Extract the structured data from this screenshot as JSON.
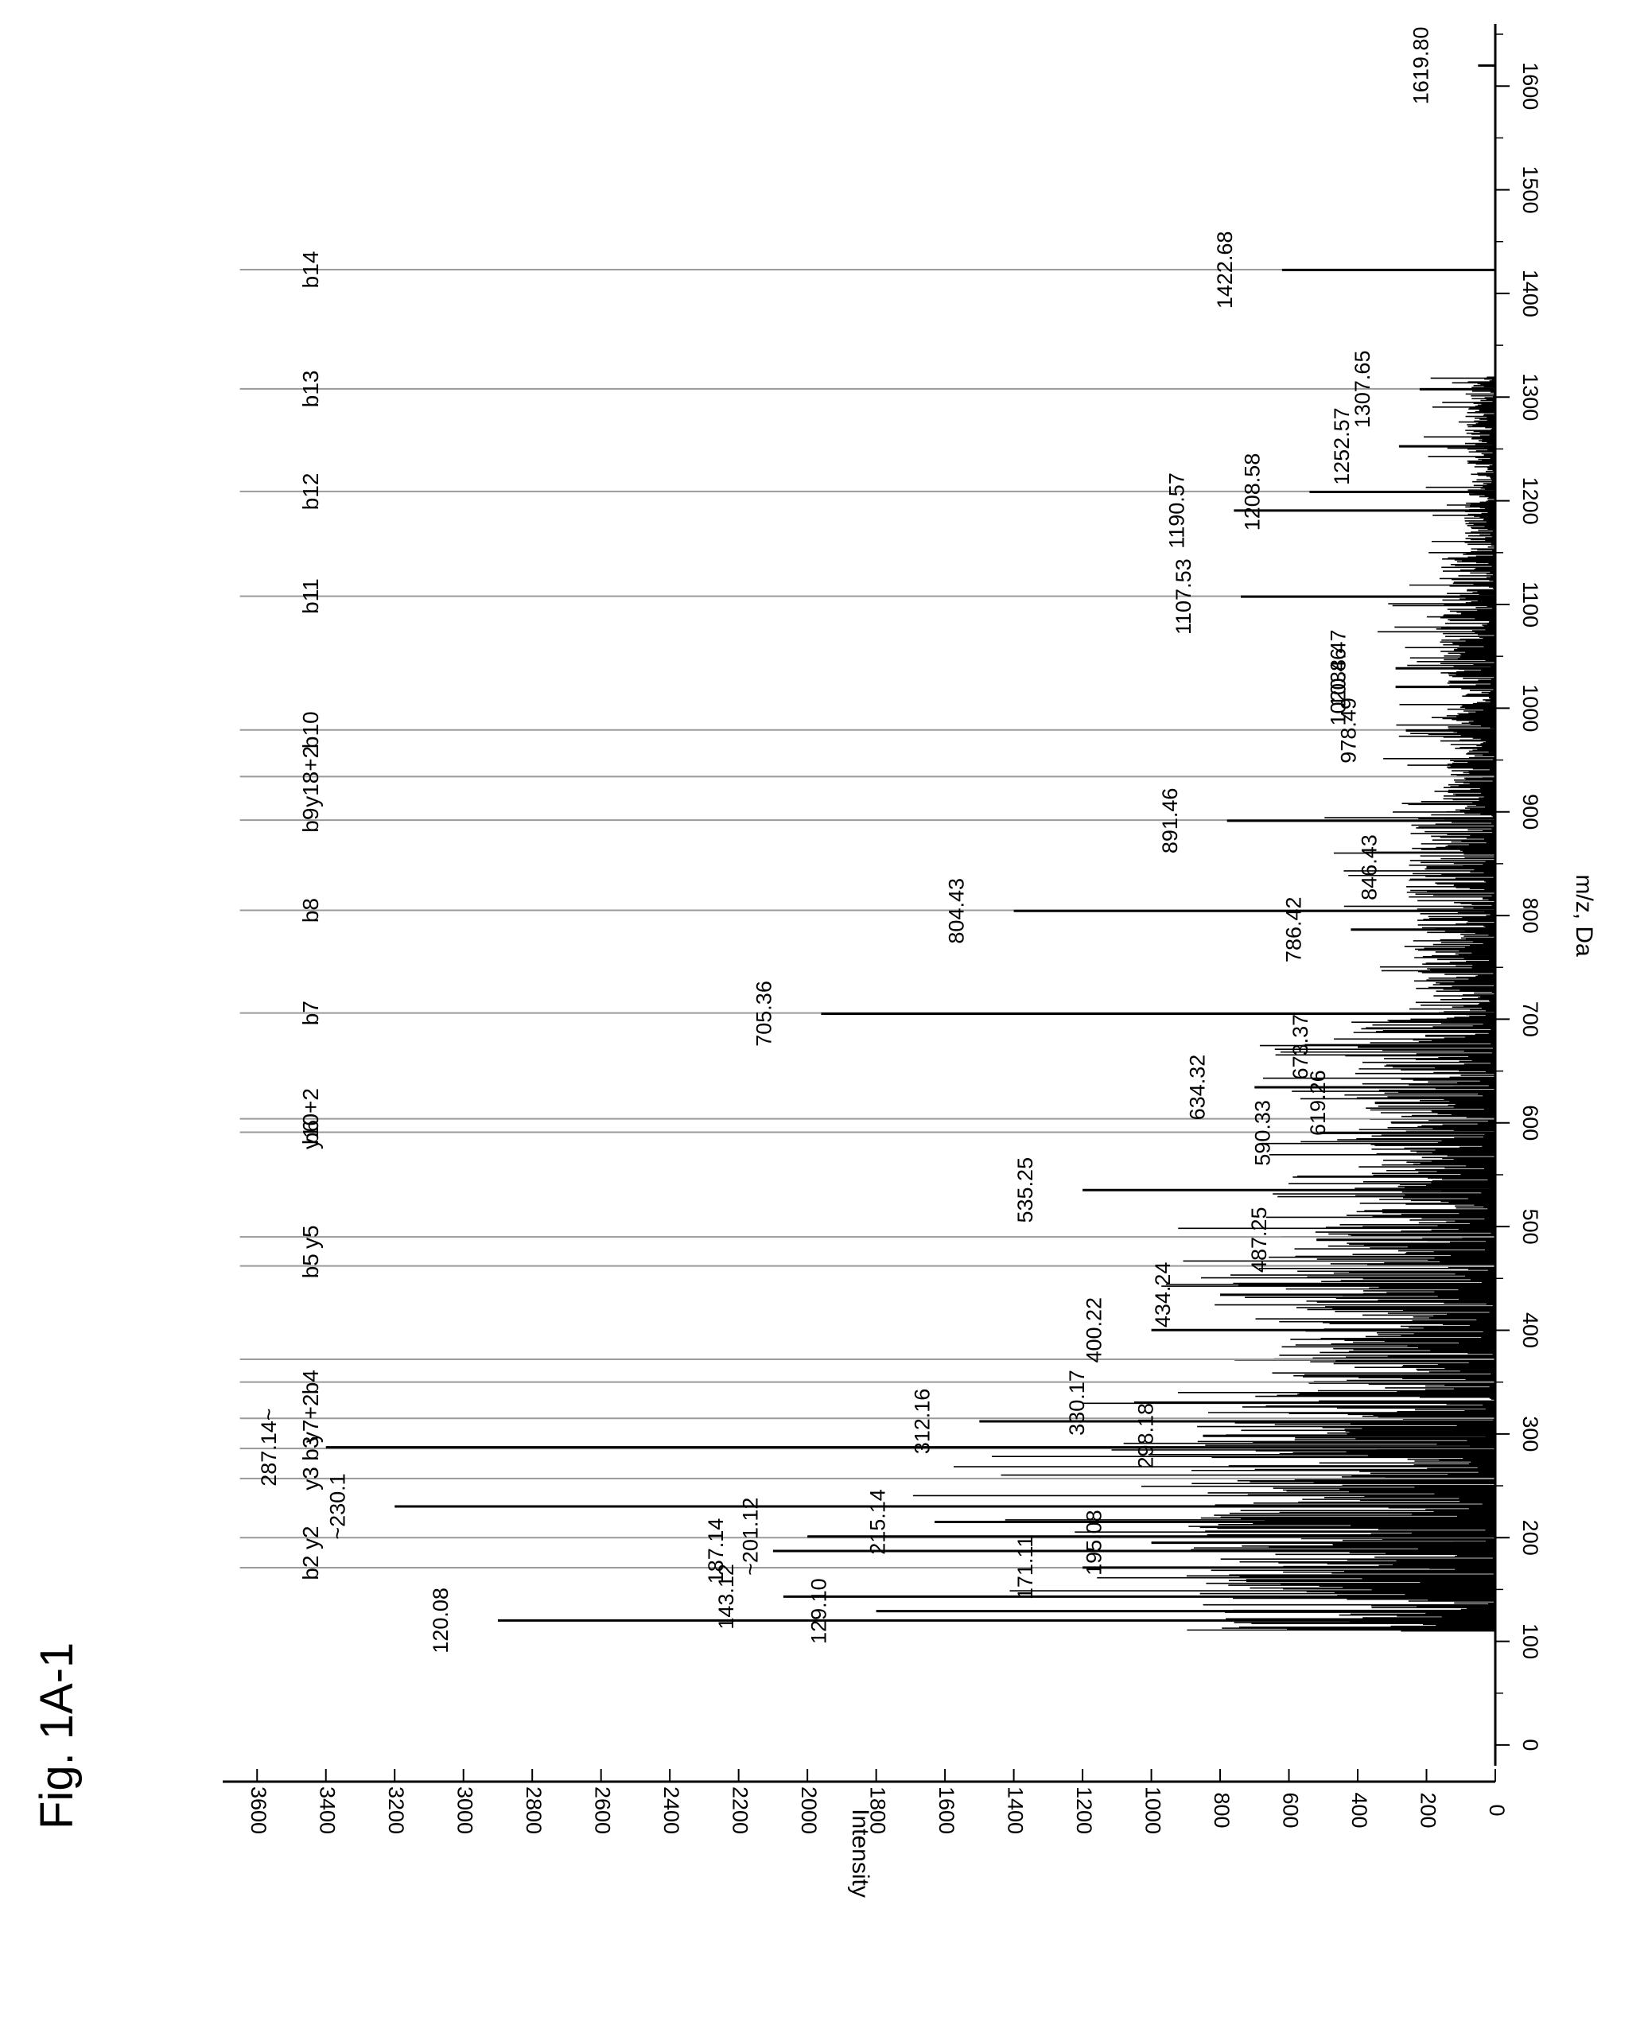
{
  "figure": {
    "label": "Fig. 1A-1"
  },
  "chart_data": {
    "type": "bar",
    "xlabel": "m/z, Da",
    "ylabel": "Intensity",
    "xlim": [
      -20,
      1660
    ],
    "ylim": [
      0,
      3700
    ],
    "x_ticks": [
      0,
      100,
      200,
      300,
      400,
      500,
      600,
      700,
      800,
      900,
      1000,
      1100,
      1200,
      1300,
      1400,
      1500,
      1600
    ],
    "y_ticks": [
      0,
      200,
      400,
      600,
      800,
      1000,
      1200,
      1400,
      1600,
      1800,
      2000,
      2200,
      2400,
      2600,
      2800,
      3000,
      3200,
      3400,
      3600
    ],
    "labeled_peaks": [
      {
        "mz": 120.08,
        "label": "120.08",
        "intensity": 2900
      },
      {
        "mz": 129.1,
        "label": "129.10",
        "intensity": 1800
      },
      {
        "mz": 143.12,
        "label": "143.12",
        "intensity": 2070
      },
      {
        "mz": 171.11,
        "label": "171.11",
        "intensity": 1200
      },
      {
        "mz": 187.14,
        "label": "187.14",
        "intensity": 2100
      },
      {
        "mz": 195.08,
        "label": "195.08",
        "intensity": 1000
      },
      {
        "mz": 201.12,
        "label": "~201.12",
        "intensity": 2000
      },
      {
        "mz": 215.14,
        "label": "215.14",
        "intensity": 1630
      },
      {
        "mz": 230.1,
        "label": "~230.1",
        "intensity": 3200
      },
      {
        "mz": 287.14,
        "label": "287.14~",
        "intensity": 3400
      },
      {
        "mz": 298.18,
        "label": "298.18",
        "intensity": 850
      },
      {
        "mz": 312.16,
        "label": "312.16",
        "intensity": 1500
      },
      {
        "mz": 330.17,
        "label": "330.17",
        "intensity": 1050
      },
      {
        "mz": 400.22,
        "label": "400.22",
        "intensity": 1000
      },
      {
        "mz": 434.24,
        "label": "434.24",
        "intensity": 800
      },
      {
        "mz": 487.25,
        "label": "487.25",
        "intensity": 520
      },
      {
        "mz": 535.25,
        "label": "535.25",
        "intensity": 1200
      },
      {
        "mz": 590.33,
        "label": "590.33",
        "intensity": 510
      },
      {
        "mz": 619.26,
        "label": "619.26",
        "intensity": 350
      },
      {
        "mz": 634.32,
        "label": "634.32",
        "intensity": 700
      },
      {
        "mz": 673.37,
        "label": "673.37",
        "intensity": 400
      },
      {
        "mz": 705.36,
        "label": "705.36",
        "intensity": 1960
      },
      {
        "mz": 786.42,
        "label": "786.42",
        "intensity": 420
      },
      {
        "mz": 804.43,
        "label": "804.43",
        "intensity": 1400
      },
      {
        "mz": 846.43,
        "label": "846.43",
        "intensity": 200
      },
      {
        "mz": 891.46,
        "label": "891.46",
        "intensity": 780
      },
      {
        "mz": 978.49,
        "label": "978.49",
        "intensity": 260
      },
      {
        "mz": 1020.46,
        "label": "1020.46",
        "intensity": 290
      },
      {
        "mz": 1038.47,
        "label": "1038.47",
        "intensity": 290
      },
      {
        "mz": 1107.53,
        "label": "1107.53",
        "intensity": 740
      },
      {
        "mz": 1190.57,
        "label": "1190.57",
        "intensity": 760
      },
      {
        "mz": 1208.58,
        "label": "1208.58",
        "intensity": 540
      },
      {
        "mz": 1252.57,
        "label": "1252.57",
        "intensity": 280
      },
      {
        "mz": 1307.65,
        "label": "1307.65",
        "intensity": 220
      },
      {
        "mz": 1422.68,
        "label": "1422.68",
        "intensity": 620
      },
      {
        "mz": 1619.8,
        "label": "1619.80",
        "intensity": 50
      }
    ],
    "ion_markers": [
      {
        "mz": 171,
        "label": "b2"
      },
      {
        "mz": 200,
        "label": "y2"
      },
      {
        "mz": 257,
        "label": "y3"
      },
      {
        "mz": 286,
        "label": "b3"
      },
      {
        "mz": 315,
        "label": "y7+2"
      },
      {
        "mz": 350,
        "label": "b4"
      },
      {
        "mz": 372,
        "label": ""
      },
      {
        "mz": 462,
        "label": "b5"
      },
      {
        "mz": 490,
        "label": "y5"
      },
      {
        "mz": 591,
        "label": "b6"
      },
      {
        "mz": 604,
        "label": "y10+2"
      },
      {
        "mz": 706,
        "label": "b7"
      },
      {
        "mz": 805,
        "label": "b8"
      },
      {
        "mz": 892,
        "label": "b9"
      },
      {
        "mz": 934,
        "label": "y18+2"
      },
      {
        "mz": 979,
        "label": "b10"
      },
      {
        "mz": 1108,
        "label": "b11"
      },
      {
        "mz": 1209,
        "label": "b12"
      },
      {
        "mz": 1308,
        "label": "b13"
      },
      {
        "mz": 1423,
        "label": "b14"
      }
    ],
    "background_noise": {
      "description": "dense unlabeled peaks",
      "segments": [
        {
          "from": 110,
          "to": 330,
          "typical": 900,
          "max": 1700
        },
        {
          "from": 330,
          "to": 500,
          "typical": 650,
          "max": 1000
        },
        {
          "from": 500,
          "to": 700,
          "typical": 420,
          "max": 700
        },
        {
          "from": 700,
          "to": 900,
          "typical": 260,
          "max": 500
        },
        {
          "from": 900,
          "to": 1150,
          "typical": 160,
          "max": 350
        },
        {
          "from": 1150,
          "to": 1320,
          "typical": 90,
          "max": 220
        }
      ]
    }
  }
}
